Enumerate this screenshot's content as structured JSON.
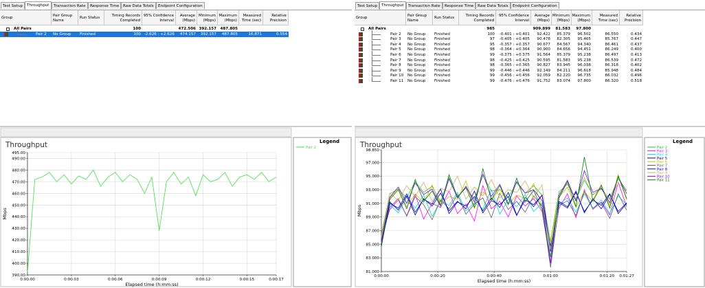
{
  "panels": [
    {
      "tabs": [
        "Test Setup",
        "Throughput",
        "Transaction Rate",
        "Response Time",
        "Raw Data Totals",
        "Endpoint Configuration"
      ],
      "selected_tab": 1,
      "table": {
        "columns": [
          "Group",
          "Pair Group Name",
          "Run Status",
          "Timing Records Completed",
          "95% Confidence Interval",
          "Average (Mbps)",
          "Minimum (Mbps)",
          "Maximum (Mbps)",
          "Measured Time (sec)",
          "Relative Precision"
        ],
        "selected_row": 1,
        "rows": [
          {
            "group": "All Pairs",
            "timing_records": "100",
            "average": "472.506",
            "minimum": "392.157",
            "maximum": "487.805"
          },
          {
            "group": "Pair 2",
            "pair_group_name": "No Group",
            "run_status": "Finished",
            "timing_records": "100",
            "confidence_interval": "-2.626 : +2.626",
            "average": "474.157",
            "minimum": "392.157",
            "maximum": "487.805",
            "measured_time": "16.871",
            "relative_precision": "0.554"
          }
        ]
      }
    },
    {
      "tabs": [
        "Test Setup",
        "Throughput",
        "Transaction Rate",
        "Response Time",
        "Raw Data Totals",
        "Endpoint Configuration"
      ],
      "selected_tab": 1,
      "table": {
        "columns": [
          "Group",
          "Pair Group Name",
          "Run Status",
          "Timing Records Completed",
          "95% Confidence Interval",
          "Average (Mbps)",
          "Minimum (Mbps)",
          "Maximum (Mbps)",
          "Measured Time (sec)",
          "Relative Precision"
        ],
        "rows": [
          {
            "group": "All Pairs",
            "timing_records": "985",
            "average": "909.899",
            "minimum": "81.583",
            "maximum": "97.800"
          },
          {
            "group": "Pair 2",
            "pair_group_name": "No Group",
            "run_status": "Finished",
            "timing_records": "100",
            "confidence_interval": "-0.401 : +0.401",
            "average": "92.422",
            "minimum": "85.379",
            "maximum": "96.502",
            "measured_time": "86.550",
            "relative_precision": "0.434"
          },
          {
            "group": "Pair 3",
            "pair_group_name": "No Group",
            "run_status": "Finished",
            "timing_records": "97",
            "confidence_interval": "-0.405 : +0.405",
            "average": "90.478",
            "minimum": "82.305",
            "maximum": "95.465",
            "measured_time": "85.767",
            "relative_precision": "0.447"
          },
          {
            "group": "Pair 4",
            "pair_group_name": "No Group",
            "run_status": "Finished",
            "timing_records": "95",
            "confidence_interval": "-0.357 : +0.357",
            "average": "90.677",
            "minimum": "84.567",
            "maximum": "94.340",
            "measured_time": "86.461",
            "relative_precision": "0.437"
          },
          {
            "group": "Pair 5",
            "pair_group_name": "No Group",
            "run_status": "Finished",
            "timing_records": "98",
            "confidence_interval": "-0.364 : +0.364",
            "average": "90.900",
            "minimum": "84.656",
            "maximum": "94.451",
            "measured_time": "86.249",
            "relative_precision": "0.400"
          },
          {
            "group": "Pair 6",
            "pair_group_name": "No Group",
            "run_status": "Finished",
            "timing_records": "99",
            "confidence_interval": "-0.375 : +0.375",
            "average": "91.564",
            "minimum": "85.379",
            "maximum": "95.238",
            "measured_time": "86.497",
            "relative_precision": "0.413"
          },
          {
            "group": "Pair 7",
            "pair_group_name": "No Group",
            "run_status": "Finished",
            "timing_records": "98",
            "confidence_interval": "-0.425 : +0.425",
            "average": "90.595",
            "minimum": "81.583",
            "maximum": "95.238",
            "measured_time": "86.539",
            "relative_precision": "0.472"
          },
          {
            "group": "Pair 8",
            "pair_group_name": "No Group",
            "run_status": "Finished",
            "timing_records": "98",
            "confidence_interval": "-0.365 : +0.365",
            "average": "90.827",
            "minimum": "83.945",
            "maximum": "96.038",
            "measured_time": "86.318",
            "relative_precision": "0.402"
          },
          {
            "group": "Pair 9",
            "pair_group_name": "No Group",
            "run_status": "Finished",
            "timing_records": "99",
            "confidence_interval": "-0.446 : +0.446",
            "average": "92.149",
            "minimum": "84.211",
            "maximum": "96.618",
            "measured_time": "85.948",
            "relative_precision": "0.484"
          },
          {
            "group": "Pair 10",
            "pair_group_name": "No Group",
            "run_status": "Finished",
            "timing_records": "99",
            "confidence_interval": "-0.456 : +0.456",
            "average": "92.059",
            "minimum": "82.220",
            "maximum": "96.735",
            "measured_time": "86.032",
            "relative_precision": "0.496"
          },
          {
            "group": "Pair 11",
            "pair_group_name": "No Group",
            "run_status": "Finished",
            "timing_records": "99",
            "confidence_interval": "-0.476 : +0.476",
            "average": "91.752",
            "minimum": "83.074",
            "maximum": "97.800",
            "measured_time": "86.320",
            "relative_precision": "0.518"
          }
        ]
      }
    }
  ],
  "chart_data": [
    {
      "type": "line",
      "title": "Throughput",
      "y_label": "Mbps",
      "x_label": "Elapsed time (h:mm:ss)",
      "legend_title": "Legend",
      "grid": true,
      "x": [
        0,
        0.5,
        1,
        1.5,
        2,
        2.5,
        3,
        3.5,
        4,
        4.5,
        5,
        5.5,
        6,
        6.5,
        7,
        7.5,
        8,
        8.5,
        9,
        9.5,
        10,
        10.5,
        11,
        11.5,
        12,
        12.5,
        13,
        13.5,
        14,
        14.5,
        15,
        15.5,
        16,
        16.5,
        17
      ],
      "xlim": [
        0,
        17
      ],
      "xticks": [
        {
          "value": 0,
          "label": "0:00:00"
        },
        {
          "value": 3,
          "label": "0:00:03"
        },
        {
          "value": 6,
          "label": "0:00:06"
        },
        {
          "value": 9,
          "label": "0:00:09"
        },
        {
          "value": 12,
          "label": "0:00:12"
        },
        {
          "value": 15,
          "label": "0:00:15"
        },
        {
          "value": 17,
          "label": "0:00:17"
        }
      ],
      "ylim": [
        390,
        495
      ],
      "yticks": [
        {
          "value": 390,
          "label": "390.00"
        },
        {
          "value": 400,
          "label": "400.00"
        },
        {
          "value": 410,
          "label": "410.00"
        },
        {
          "value": 420,
          "label": "420.00"
        },
        {
          "value": 430,
          "label": "430.00"
        },
        {
          "value": 440,
          "label": "440.00"
        },
        {
          "value": 450,
          "label": "450.00"
        },
        {
          "value": 460,
          "label": "460.00"
        },
        {
          "value": 470,
          "label": "470.00"
        },
        {
          "value": 480,
          "label": "480.00"
        },
        {
          "value": 490,
          "label": "490.00"
        },
        {
          "value": 495,
          "label": "495.00"
        }
      ],
      "series": [
        {
          "name": "Pair 2",
          "color": "#3ee03e",
          "values": [
            392,
            472,
            474,
            478,
            470,
            476,
            468,
            475,
            472,
            480,
            466,
            474,
            478,
            470,
            476,
            472,
            460,
            474,
            428,
            470,
            478,
            468,
            474,
            458,
            476,
            470,
            472,
            478,
            466,
            474,
            476,
            472,
            478,
            470,
            474
          ]
        }
      ]
    },
    {
      "type": "line",
      "title": "Throughput",
      "y_label": "Mbps",
      "x_label": "Elapsed time (h:mm:ss)",
      "legend_title": "Legend",
      "grid": true,
      "x": [
        0,
        3,
        6,
        9,
        12,
        15,
        18,
        21,
        24,
        27,
        30,
        33,
        36,
        39,
        42,
        45,
        48,
        51,
        54,
        57,
        60,
        63,
        66,
        69,
        72,
        75,
        78,
        81,
        84,
        87
      ],
      "xlim": [
        0,
        87
      ],
      "xticks": [
        {
          "value": 0,
          "label": "0:00:00"
        },
        {
          "value": 20,
          "label": "0:00:20"
        },
        {
          "value": 40,
          "label": "0:00:40"
        },
        {
          "value": 60,
          "label": "0:01:00"
        },
        {
          "value": 80,
          "label": "0:01:20"
        },
        {
          "value": 87,
          "label": "0:01:27"
        }
      ],
      "ylim": [
        81,
        98.85
      ],
      "yticks": [
        {
          "value": 81,
          "label": "81.000"
        },
        {
          "value": 83,
          "label": "83.000"
        },
        {
          "value": 85,
          "label": "85.000"
        },
        {
          "value": 87,
          "label": "87.000"
        },
        {
          "value": 89,
          "label": "89.000"
        },
        {
          "value": 91,
          "label": "91.000"
        },
        {
          "value": 93,
          "label": "93.000"
        },
        {
          "value": 95,
          "label": "95.000"
        },
        {
          "value": 97,
          "label": "97.000"
        },
        {
          "value": 98.85,
          "label": "98.850"
        }
      ],
      "series": [
        {
          "name": "Pair 2",
          "color": "#22cc22",
          "values": [
            86.5,
            92.4,
            93.1,
            91.8,
            94.2,
            92.6,
            93.5,
            91.2,
            94.8,
            92.0,
            93.3,
            91.6,
            95.1,
            92.8,
            93.0,
            91.9,
            94.0,
            92.5,
            93.6,
            92.2,
            85.4,
            92.7,
            93.8,
            91.5,
            94.4,
            92.3,
            93.1,
            91.7,
            94.6,
            92.9
          ]
        },
        {
          "name": "Pair 3",
          "color": "#ff00ff",
          "values": [
            85.9,
            90.1,
            91.5,
            89.2,
            92.3,
            88.7,
            91.0,
            90.4,
            92.8,
            89.5,
            90.9,
            88.4,
            93.6,
            90.2,
            91.3,
            89.0,
            92.1,
            90.6,
            91.7,
            89.8,
            82.3,
            90.3,
            92.4,
            88.9,
            93.0,
            90.1,
            91.2,
            89.3,
            94.1,
            90.5
          ]
        },
        {
          "name": "Pair 4",
          "color": "#00d8e0",
          "values": [
            85.2,
            90.8,
            89.6,
            91.9,
            90.3,
            92.2,
            89.1,
            91.4,
            90.7,
            92.6,
            89.9,
            91.1,
            90.2,
            93.0,
            89.4,
            91.6,
            90.5,
            92.3,
            89.8,
            91.0,
            84.6,
            90.9,
            91.8,
            89.7,
            92.4,
            90.2,
            91.5,
            89.5,
            92.1,
            90.8
          ]
        },
        {
          "name": "Pair 5",
          "color": "#000080",
          "values": [
            84.7,
            91.2,
            90.0,
            92.1,
            89.3,
            91.7,
            90.6,
            92.5,
            89.9,
            91.3,
            90.2,
            92.8,
            89.6,
            91.4,
            90.8,
            92.0,
            89.2,
            91.9,
            90.5,
            92.2,
            84.7,
            91.1,
            90.3,
            92.6,
            89.8,
            91.5,
            90.7,
            92.4,
            89.5,
            91.0
          ]
        },
        {
          "name": "Pair 6",
          "color": "#c0c000",
          "values": [
            86.0,
            91.8,
            93.2,
            90.5,
            92.4,
            91.1,
            93.7,
            90.8,
            92.0,
            91.6,
            94.3,
            90.3,
            92.7,
            91.4,
            93.1,
            90.9,
            92.2,
            91.7,
            93.9,
            90.6,
            85.4,
            91.9,
            93.4,
            90.4,
            92.8,
            91.2,
            93.5,
            90.7,
            95.2,
            91.5
          ]
        },
        {
          "name": "Pair 7",
          "color": "#606060",
          "values": [
            85.3,
            90.4,
            91.7,
            89.1,
            92.0,
            90.8,
            88.6,
            91.5,
            90.2,
            92.3,
            89.4,
            90.9,
            91.8,
            88.9,
            92.5,
            90.1,
            91.3,
            89.7,
            92.1,
            90.6,
            81.6,
            90.7,
            91.4,
            89.2,
            92.7,
            90.3,
            91.1,
            88.8,
            92.4,
            90.0
          ]
        },
        {
          "name": "Pair 8",
          "color": "#0000ff",
          "values": [
            84.9,
            91.0,
            90.3,
            92.4,
            89.7,
            91.6,
            90.9,
            93.1,
            89.5,
            91.2,
            90.6,
            92.0,
            89.9,
            91.8,
            90.4,
            92.6,
            89.3,
            91.5,
            90.8,
            92.2,
            83.9,
            91.3,
            90.5,
            92.8,
            89.6,
            91.7,
            90.2,
            92.3,
            89.8,
            91.1
          ]
        },
        {
          "name": "Pair 9",
          "color": "#c8b060",
          "values": [
            86.2,
            92.5,
            91.4,
            93.6,
            92.0,
            94.1,
            91.3,
            93.2,
            92.7,
            95.0,
            91.6,
            93.4,
            92.1,
            94.5,
            91.8,
            93.0,
            92.6,
            94.3,
            91.9,
            93.7,
            84.2,
            92.4,
            93.9,
            91.7,
            94.8,
            92.2,
            93.3,
            91.5,
            94.0,
            92.8
          ]
        },
        {
          "name": "Pair 10",
          "color": "#8000ff",
          "values": [
            85.5,
            91.9,
            93.4,
            91.0,
            94.0,
            92.3,
            93.1,
            90.7,
            94.6,
            91.8,
            93.5,
            91.2,
            95.3,
            92.0,
            93.8,
            90.9,
            94.2,
            92.5,
            93.0,
            91.4,
            82.2,
            92.1,
            94.4,
            91.3,
            95.8,
            92.6,
            93.2,
            91.1,
            94.9,
            92.4
          ]
        },
        {
          "name": "Pair 11",
          "color": "#008000",
          "values": [
            85.0,
            91.6,
            93.0,
            90.2,
            94.5,
            91.3,
            92.8,
            90.6,
            95.2,
            91.9,
            93.3,
            90.4,
            96.1,
            91.5,
            93.6,
            90.8,
            94.7,
            91.2,
            92.9,
            90.1,
            83.1,
            91.8,
            94.2,
            90.5,
            97.8,
            91.4,
            93.7,
            90.3,
            95.0,
            91.7
          ]
        }
      ]
    }
  ]
}
